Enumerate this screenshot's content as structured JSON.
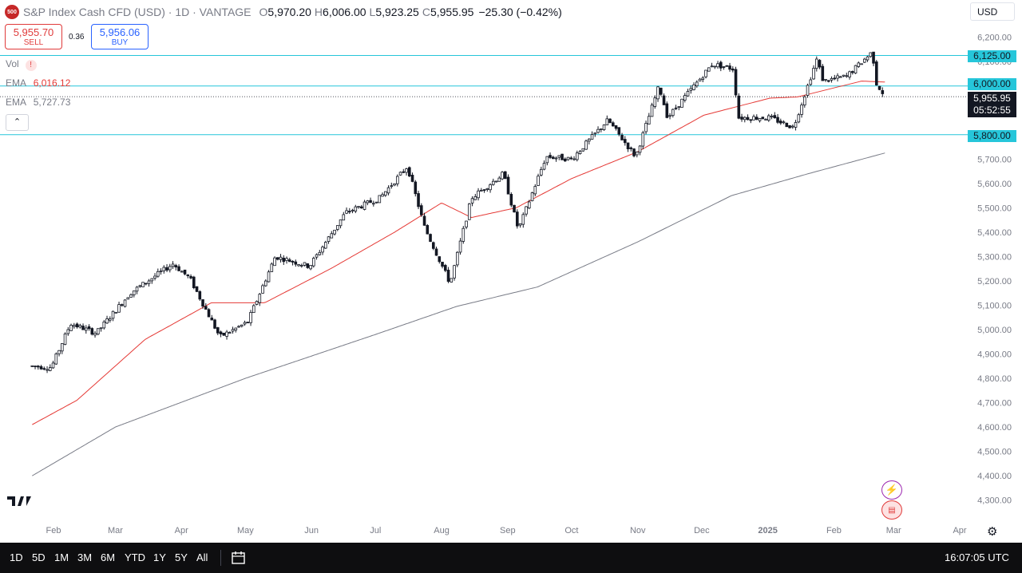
{
  "header": {
    "logo_text": "500",
    "symbol": "S&P Index Cash CFD (USD) · 1D · VANTAGE",
    "o_label": "O",
    "o": "5,970.20",
    "h_label": "H",
    "h": "6,006.00",
    "l_label": "L",
    "l": "5,923.25",
    "c_label": "C",
    "c": "5,955.95",
    "change": "−25.30 (−0.42%)"
  },
  "trade": {
    "sell_price": "5,955.70",
    "sell_label": "SELL",
    "spread": "0.36",
    "buy_price": "5,956.06",
    "buy_label": "BUY"
  },
  "legend": {
    "vol_label": "Vol",
    "vol_warning": "!",
    "ema1_label": "EMA",
    "ema1_value": "6,016.12",
    "ema2_label": "EMA",
    "ema2_value": "5,727.73",
    "collapse": "⌃"
  },
  "currency": "USD",
  "current_price": {
    "value": "5,955.95",
    "countdown": "05:52:55"
  },
  "level_labels": [
    "6,125.00",
    "6,000.00",
    "5,800.00"
  ],
  "bottom": {
    "timeframes": [
      "1D",
      "5D",
      "1M",
      "3M",
      "6M",
      "YTD",
      "1Y",
      "5Y",
      "All"
    ],
    "calendar_icon": "calendar-range-icon",
    "time": "16:07:05 UTC"
  },
  "colors": {
    "candle": "#131722",
    "ema_fast": "#e53935",
    "ema_slow": "#787b86",
    "levels": "#26c6da"
  },
  "chart_data": {
    "type": "candlestick",
    "title": "S&P Index Cash CFD (USD)",
    "timeframe": "1D",
    "ylim": [
      4250,
      6270
    ],
    "y_ticks": [
      4300,
      4400,
      4500,
      4600,
      4700,
      4800,
      4900,
      5000,
      5100,
      5200,
      5300,
      5400,
      5500,
      5600,
      5700,
      5800,
      5900,
      6000,
      6100,
      6200
    ],
    "x_ticks": [
      "Feb",
      "Mar",
      "Apr",
      "May",
      "Jun",
      "Jul",
      "Aug",
      "Sep",
      "Oct",
      "Nov",
      "Dec",
      "2025",
      "Feb",
      "Mar",
      "Apr"
    ],
    "horizontal_levels": [
      6125,
      6000,
      5800
    ],
    "current_price": 5955.95,
    "ema_fast_value": 6016.12,
    "ema_slow_value": 5727.73,
    "price_path": [
      [
        "2024-01-22",
        4850
      ],
      [
        "2024-01-31",
        4845
      ],
      [
        "2024-02-09",
        5025
      ],
      [
        "2024-02-21",
        4985
      ],
      [
        "2024-03-08",
        5150
      ],
      [
        "2024-03-28",
        5270
      ],
      [
        "2024-04-05",
        5210
      ],
      [
        "2024-04-19",
        4970
      ],
      [
        "2024-05-02",
        5030
      ],
      [
        "2024-05-15",
        5300
      ],
      [
        "2024-05-31",
        5260
      ],
      [
        "2024-06-17",
        5480
      ],
      [
        "2024-07-03",
        5540
      ],
      [
        "2024-07-16",
        5670
      ],
      [
        "2024-07-24",
        5420
      ],
      [
        "2024-08-05",
        5190
      ],
      [
        "2024-08-15",
        5540
      ],
      [
        "2024-08-30",
        5640
      ],
      [
        "2024-09-06",
        5410
      ],
      [
        "2024-09-19",
        5710
      ],
      [
        "2024-10-01",
        5700
      ],
      [
        "2024-10-18",
        5860
      ],
      [
        "2024-10-31",
        5710
      ],
      [
        "2024-11-11",
        6000
      ],
      [
        "2024-11-15",
        5870
      ],
      [
        "2024-12-06",
        6090
      ],
      [
        "2024-12-16",
        6070
      ],
      [
        "2024-12-18",
        5870
      ],
      [
        "2025-01-02",
        5870
      ],
      [
        "2025-01-13",
        5830
      ],
      [
        "2025-01-24",
        6110
      ],
      [
        "2025-01-27",
        6020
      ],
      [
        "2025-02-07",
        6040
      ],
      [
        "2025-02-19",
        6140
      ],
      [
        "2025-02-21",
        6010
      ],
      [
        "2025-02-24",
        5970
      ],
      [
        "2025-02-25",
        5955.95
      ]
    ],
    "ema_fast": [
      [
        "2024-01-22",
        4610
      ],
      [
        "2024-02-12",
        4710
      ],
      [
        "2024-03-15",
        4960
      ],
      [
        "2024-04-15",
        5110
      ],
      [
        "2024-05-10",
        5110
      ],
      [
        "2024-06-10",
        5250
      ],
      [
        "2024-07-10",
        5400
      ],
      [
        "2024-08-01",
        5520
      ],
      [
        "2024-08-15",
        5460
      ],
      [
        "2024-09-05",
        5500
      ],
      [
        "2024-10-01",
        5620
      ],
      [
        "2024-11-01",
        5730
      ],
      [
        "2024-12-02",
        5880
      ],
      [
        "2025-01-02",
        5950
      ],
      [
        "2025-01-15",
        5955
      ],
      [
        "2025-02-14",
        6020
      ],
      [
        "2025-02-25",
        6016
      ]
    ],
    "ema_slow": [
      [
        "2024-01-22",
        4400
      ],
      [
        "2024-03-01",
        4600
      ],
      [
        "2024-05-01",
        4800
      ],
      [
        "2024-07-01",
        4980
      ],
      [
        "2024-08-08",
        5095
      ],
      [
        "2024-09-15",
        5175
      ],
      [
        "2024-11-01",
        5360
      ],
      [
        "2024-12-15",
        5550
      ],
      [
        "2025-01-20",
        5640
      ],
      [
        "2025-02-25",
        5725
      ]
    ]
  }
}
